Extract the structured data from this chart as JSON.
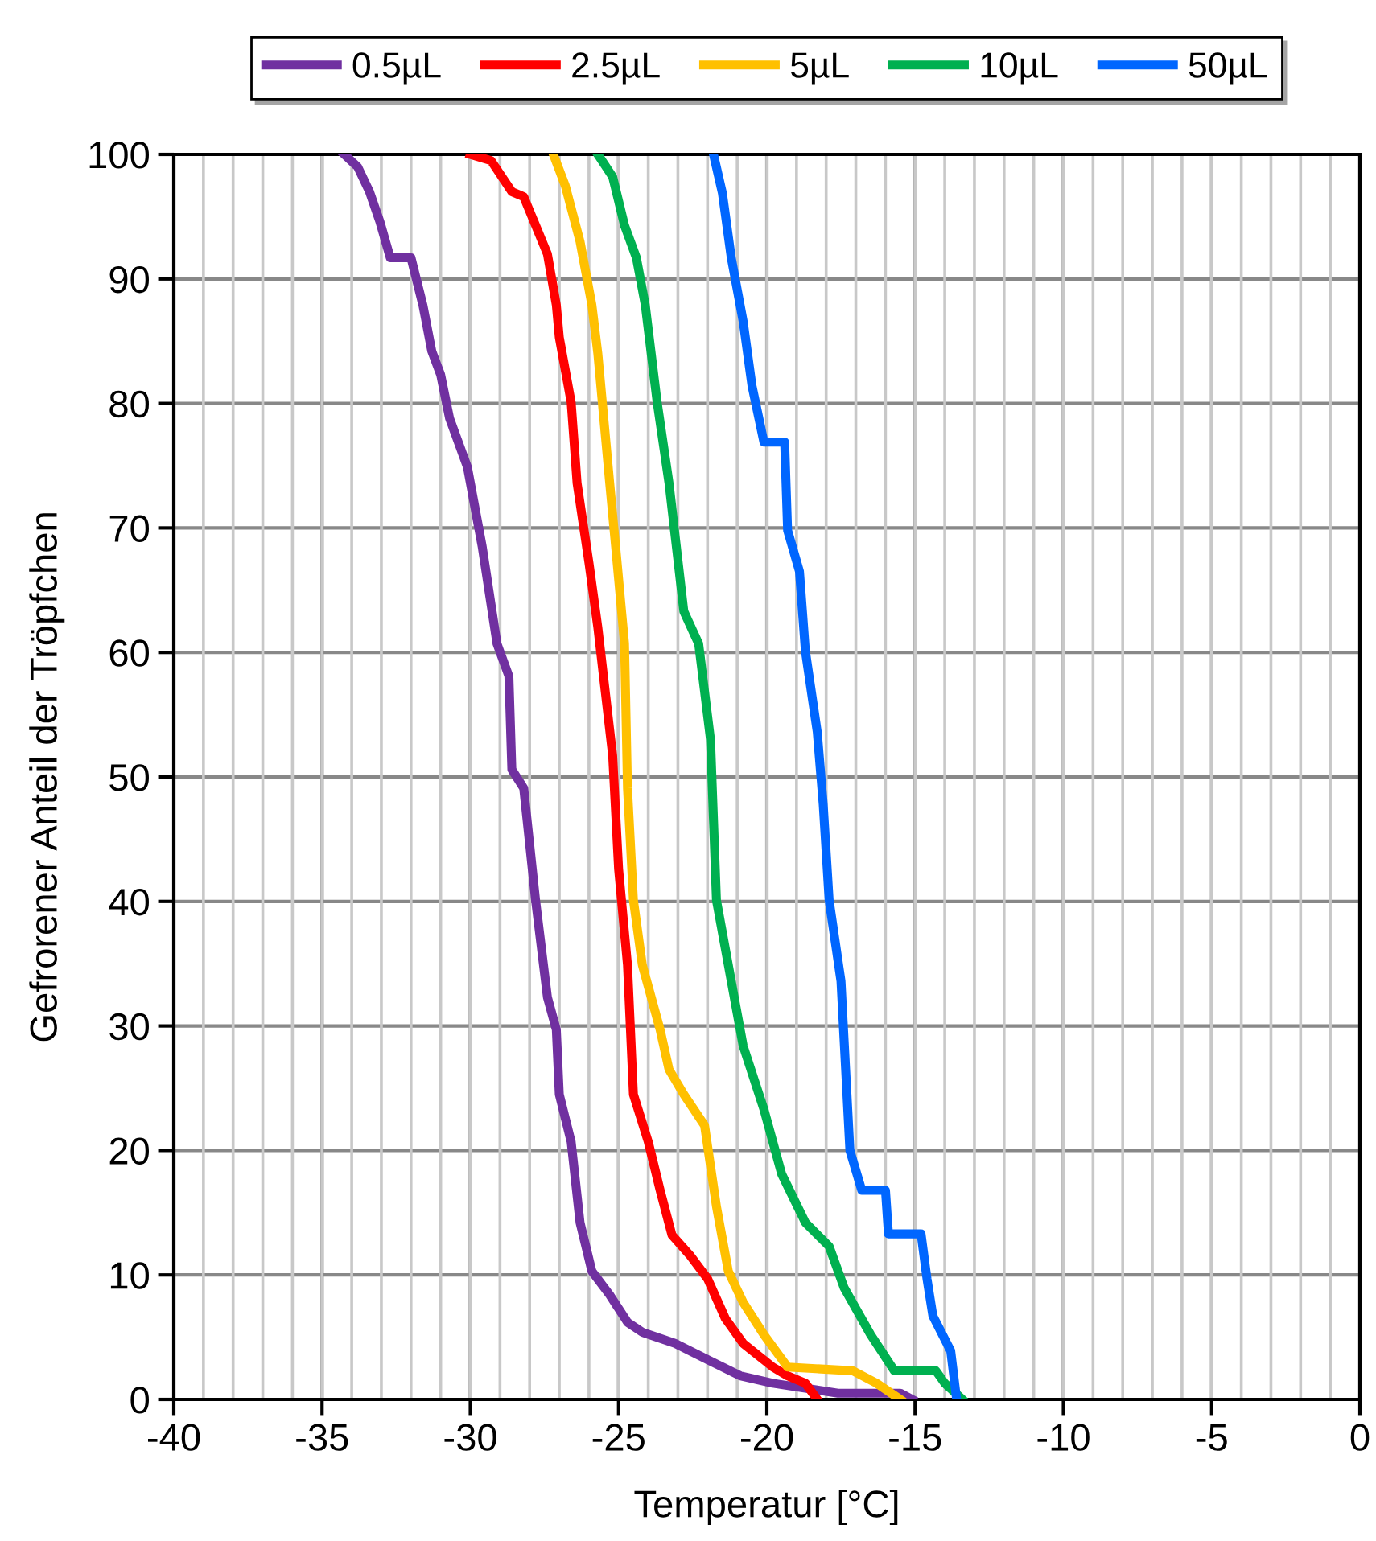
{
  "chart_data": {
    "type": "line",
    "xlabel": "Temperatur [°C]",
    "ylabel": "Gefrorener Anteil der Tröpfchen",
    "xlim": [
      -40,
      0
    ],
    "xticks": [
      -40,
      -35,
      -30,
      -25,
      -20,
      -15,
      -10,
      -5,
      0
    ],
    "ylim": [
      0,
      100
    ],
    "yticks": [
      0,
      10,
      20,
      30,
      40,
      50,
      60,
      70,
      80,
      90,
      100
    ],
    "grid": true,
    "legend": "top",
    "line_style": "solid",
    "marker": "none",
    "series": [
      {
        "name": "0.5µL",
        "color": "#7030a0",
        "x": [
          -34.25,
          -33.8,
          -33.4,
          -33.05,
          -32.7,
          -32.0,
          -31.6,
          -31.3,
          -31.0,
          -30.7,
          -30.1,
          -29.6,
          -29.1,
          -28.7,
          -28.6,
          -28.2,
          -27.8,
          -27.4,
          -27.1,
          -27.0,
          -26.6,
          -26.3,
          -25.9,
          -25.3,
          -24.7,
          -24.2,
          -23.1,
          -22.0,
          -20.9,
          -19.8,
          -17.6,
          -15.5,
          -15.1
        ],
        "values": [
          100,
          99,
          97,
          94.6,
          91.7,
          91.7,
          87.9,
          84.2,
          82.3,
          78.8,
          74.9,
          68.5,
          60.7,
          58.1,
          50.6,
          49.1,
          40.1,
          32.3,
          29.7,
          24.5,
          20.7,
          14.2,
          10.3,
          8.4,
          6.2,
          5.4,
          4.5,
          3.2,
          1.9,
          1.3,
          0.5,
          0.5,
          0
        ]
      },
      {
        "name": "2.5µL",
        "color": "#ff0000",
        "x": [
          -30.0,
          -29.3,
          -28.6,
          -28.2,
          -27.8,
          -27.4,
          -27.1,
          -27.0,
          -26.6,
          -26.4,
          -26.0,
          -25.7,
          -25.2,
          -25.0,
          -24.7,
          -24.5,
          -24.0,
          -23.6,
          -23.2,
          -22.6,
          -22.0,
          -21.4,
          -20.8,
          -19.8,
          -19.3,
          -18.7,
          -18.3
        ],
        "values": [
          100,
          99.5,
          97,
          96.6,
          94.3,
          92,
          87.9,
          85.3,
          80.1,
          73.6,
          67.2,
          62.0,
          51.7,
          42.6,
          34.9,
          24.5,
          20.7,
          16.8,
          13.2,
          11.6,
          9.7,
          6.5,
          4.5,
          2.6,
          1.9,
          1.3,
          0
        ]
      },
      {
        "name": "5µL",
        "color": "#ffc000",
        "x": [
          -27.2,
          -26.8,
          -26.3,
          -25.9,
          -25.7,
          -25.5,
          -25.3,
          -25.1,
          -24.8,
          -24.7,
          -24.5,
          -24.2,
          -23.6,
          -23.3,
          -22.8,
          -22.1,
          -21.7,
          -21.3,
          -20.8,
          -20.1,
          -19.3,
          -17.1,
          -16.3,
          -15.5
        ],
        "values": [
          100,
          97.5,
          93,
          87.9,
          84,
          78.8,
          73.6,
          68.5,
          60.7,
          49.1,
          40.1,
          34.9,
          29.7,
          26.5,
          24.5,
          22.0,
          15.5,
          10.3,
          7.8,
          5.2,
          2.6,
          2.3,
          1.3,
          0
        ]
      },
      {
        "name": "10µL",
        "color": "#00b050",
        "x": [
          -25.7,
          -25.2,
          -24.8,
          -24.4,
          -24.1,
          -23.7,
          -23.3,
          -22.8,
          -22.3,
          -21.9,
          -21.7,
          -21.3,
          -20.8,
          -20.1,
          -19.5,
          -18.7,
          -17.9,
          -17.4,
          -16.5,
          -15.7,
          -14.3,
          -14.0,
          -13.4
        ],
        "values": [
          100,
          98.2,
          94.3,
          91.7,
          87.9,
          80.1,
          73.6,
          63.3,
          60.7,
          53.0,
          40.1,
          34.9,
          28.4,
          23.3,
          18.1,
          14.2,
          12.3,
          9.0,
          5.2,
          2.3,
          2.3,
          1.3,
          0
        ]
      },
      {
        "name": "50µL",
        "color": "#0066ff",
        "x": [
          -21.8,
          -21.5,
          -21.2,
          -20.8,
          -20.5,
          -20.1,
          -19.4,
          -19.3,
          -18.9,
          -18.7,
          -18.3,
          -18.1,
          -17.9,
          -17.5,
          -17.2,
          -16.8,
          -16.0,
          -15.9,
          -14.8,
          -14.6,
          -14.4,
          -13.8,
          -13.6
        ],
        "values": [
          100,
          96.9,
          91.7,
          86.6,
          81.4,
          76.9,
          76.9,
          69.8,
          66.5,
          60.1,
          53.6,
          47.8,
          40.1,
          33.6,
          20.0,
          16.8,
          16.8,
          13.3,
          13.3,
          9.7,
          6.7,
          3.9,
          0
        ]
      }
    ]
  }
}
